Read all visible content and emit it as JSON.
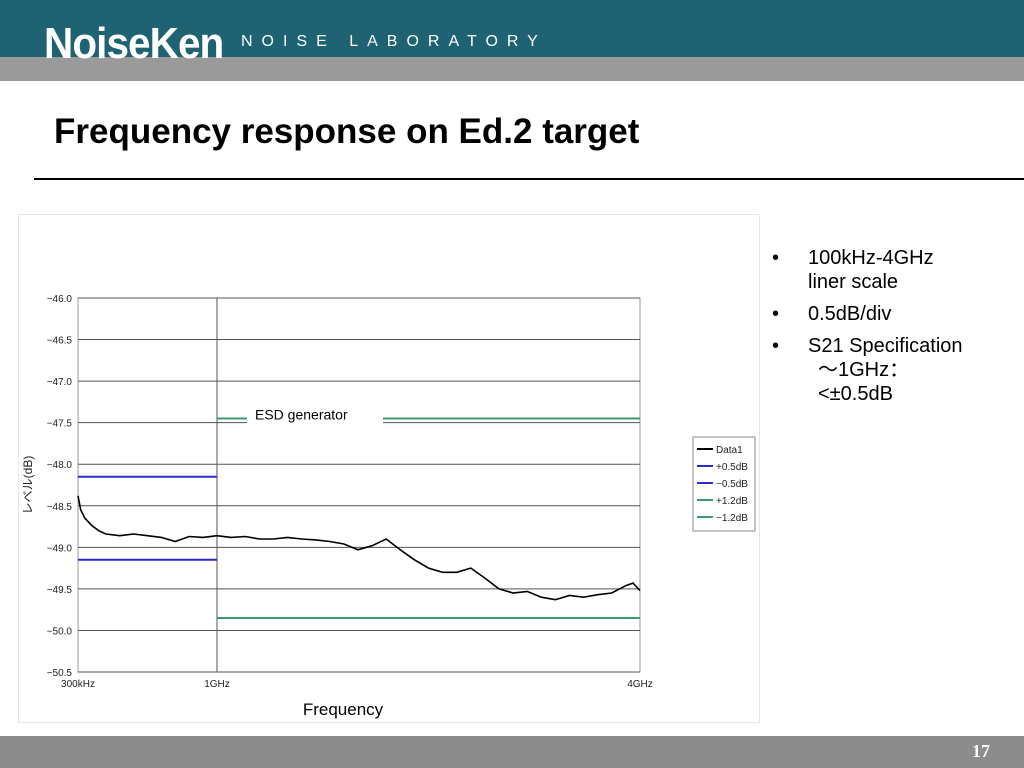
{
  "header": {
    "logo_text": "NoiseKen",
    "tagline": "NOISE LABORATORY",
    "band_color": "#1f6373",
    "strip_color": "#9a9a9a"
  },
  "slide": {
    "title": "Frequency response on Ed.2 target",
    "page_number": "17"
  },
  "bullets": [
    {
      "line1": "100kHz-4GHz",
      "line2": "liner scale"
    },
    {
      "line1": "0.5dB/div",
      "line2": ""
    },
    {
      "line1": "S21 Specification",
      "line2": "～1GHz：",
      "line3": "<±0.5dB"
    }
  ],
  "bullet_symbol": "•",
  "chart_data": {
    "type": "line",
    "title": "",
    "xlabel": "Frequency",
    "ylabel": "レベル(dB)",
    "annotation": "ESD generator",
    "ylim": [
      -50.5,
      -46.0
    ],
    "yticks": [
      -46.0,
      -46.5,
      -47.0,
      -47.5,
      -48.0,
      -48.5,
      -49.0,
      -49.5,
      -50.0,
      -50.5
    ],
    "ytick_labels": [
      "−46.0",
      "−46.5",
      "−47.0",
      "−47.5",
      "−48.0",
      "−48.5",
      "−49.0",
      "−49.5",
      "−50.0",
      "−50.5"
    ],
    "x_unit": "GHz",
    "xlim": [
      0.0003,
      4.0
    ],
    "xticks": [
      0.0003,
      1.0,
      4.0
    ],
    "xtick_labels": [
      "300kHz",
      "1GHz",
      "4GHz"
    ],
    "grid": true,
    "legend_position": "right",
    "series": [
      {
        "name": "Data1",
        "color": "#000000",
        "x": [
          0.0003,
          0.02,
          0.05,
          0.1,
          0.15,
          0.2,
          0.3,
          0.4,
          0.5,
          0.6,
          0.7,
          0.8,
          0.9,
          1.0,
          1.1,
          1.2,
          1.3,
          1.4,
          1.5,
          1.6,
          1.7,
          1.8,
          1.9,
          2.0,
          2.1,
          2.2,
          2.3,
          2.4,
          2.5,
          2.6,
          2.7,
          2.8,
          2.9,
          3.0,
          3.1,
          3.2,
          3.3,
          3.4,
          3.5,
          3.6,
          3.7,
          3.8,
          3.9,
          3.95,
          4.0
        ],
        "values": [
          -48.38,
          -48.55,
          -48.65,
          -48.74,
          -48.8,
          -48.84,
          -48.86,
          -48.84,
          -48.86,
          -48.88,
          -48.93,
          -48.87,
          -48.88,
          -48.86,
          -48.88,
          -48.87,
          -48.9,
          -48.9,
          -48.88,
          -48.9,
          -48.91,
          -48.93,
          -48.96,
          -49.03,
          -48.98,
          -48.9,
          -49.03,
          -49.15,
          -49.25,
          -49.3,
          -49.3,
          -49.25,
          -49.37,
          -49.5,
          -49.55,
          -49.53,
          -49.6,
          -49.63,
          -49.58,
          -49.6,
          -49.57,
          -49.55,
          -49.46,
          -49.43,
          -49.52
        ]
      },
      {
        "name": "+0.5dB",
        "color": "#2b2bcc",
        "x": [
          0.0003,
          1.0
        ],
        "values": [
          -48.15,
          -48.15
        ]
      },
      {
        "name": "−0.5dB",
        "color": "#2b2bcc",
        "x": [
          0.0003,
          1.0
        ],
        "values": [
          -49.15,
          -49.15
        ]
      },
      {
        "name": "+1.2dB",
        "color": "#3d9a6a",
        "x": [
          1.0,
          4.0
        ],
        "values": [
          -47.45,
          -47.45
        ]
      },
      {
        "name": "−1.2dB",
        "color": "#3d9a6a",
        "x": [
          1.0,
          4.0
        ],
        "values": [
          -49.85,
          -49.85
        ]
      }
    ]
  }
}
